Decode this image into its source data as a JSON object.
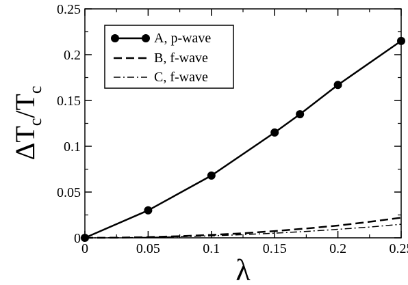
{
  "chart_data": {
    "type": "line",
    "xlabel": "λ",
    "ylabel": "ΔTc/Tc",
    "ylabel_main": "ΔT",
    "ylabel_sub1": "c",
    "ylabel_mid": "/T",
    "ylabel_sub2": "c",
    "xlim": [
      0,
      0.25
    ],
    "ylim": [
      0,
      0.25
    ],
    "xticks": [
      0,
      0.05,
      0.1,
      0.15,
      0.2,
      0.25
    ],
    "xtick_labels": [
      "0",
      "0.05",
      "0.1",
      "0.15",
      "0.2",
      "0.25"
    ],
    "yticks": [
      0,
      0.05,
      0.1,
      0.15,
      0.2,
      0.25
    ],
    "ytick_labels": [
      "0",
      "0.05",
      "0.1",
      "0.15",
      "0.2",
      "0.25"
    ],
    "grid": false,
    "legend_position": "top-left",
    "series": [
      {
        "name": "A, p-wave",
        "style": "solid-markers",
        "x": [
          0,
          0.05,
          0.1,
          0.15,
          0.17,
          0.2,
          0.25
        ],
        "y": [
          0,
          0.03,
          0.068,
          0.115,
          0.135,
          0.167,
          0.215
        ]
      },
      {
        "name": "B, f-wave",
        "style": "dashed",
        "x": [
          0,
          0.025,
          0.05,
          0.075,
          0.1,
          0.125,
          0.15,
          0.175,
          0.2,
          0.225,
          0.25
        ],
        "y": [
          0,
          0.0002,
          0.0008,
          0.0018,
          0.0032,
          0.005,
          0.0074,
          0.0102,
          0.0134,
          0.0175,
          0.022
        ]
      },
      {
        "name": "C, f-wave",
        "style": "dashdot",
        "x": [
          0,
          0.025,
          0.05,
          0.075,
          0.1,
          0.125,
          0.15,
          0.175,
          0.2,
          0.225,
          0.25
        ],
        "y": [
          0,
          0.0001,
          0.0005,
          0.0012,
          0.0022,
          0.0035,
          0.0051,
          0.007,
          0.0093,
          0.0118,
          0.0148
        ]
      }
    ]
  }
}
